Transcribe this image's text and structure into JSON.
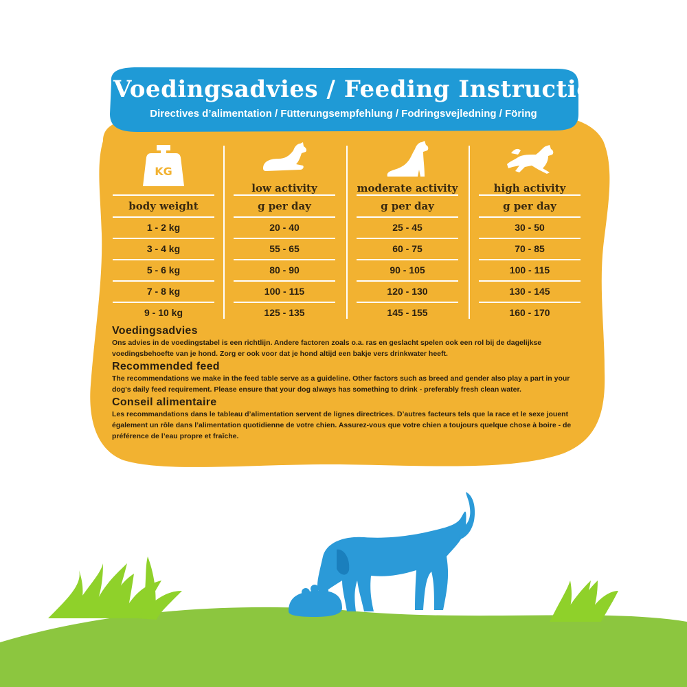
{
  "banner": {
    "title": "Voedingsadvies / Feeding Instruction",
    "subtitle": "Directives d’alimentation / Fütterungsempfehlung / Fodringsvejledning / Föring"
  },
  "colors": {
    "banner": "#1f9ad6",
    "card": "#f2b231",
    "text": "#2b2010",
    "dog": "#2b9ad8",
    "grass": "#8cc63f",
    "grass_blades": "#8fd12a"
  },
  "table": {
    "weight_icon_text": "KG",
    "columns": [
      {
        "icon": "kg-weight-icon",
        "label": "",
        "unit": "body weight",
        "values": [
          "1 - 2 kg",
          "3 - 4 kg",
          "5 - 6 kg",
          "7 - 8 kg",
          "9 - 10 kg"
        ]
      },
      {
        "icon": "lying-dog-icon",
        "label": "low activity",
        "unit": "g per day",
        "values": [
          "20 - 40",
          "55 - 65",
          "80 - 90",
          "100 - 115",
          "125 - 135"
        ]
      },
      {
        "icon": "sitting-dog-icon",
        "label": "moderate activity",
        "unit": "g per day",
        "values": [
          "25 - 45",
          "60 - 75",
          "90 - 105",
          "120 - 130",
          "145 - 155"
        ]
      },
      {
        "icon": "running-dog-icon",
        "label": "high activity",
        "unit": "g per day",
        "values": [
          "30 - 50",
          "70 - 85",
          "100 - 115",
          "130 - 145",
          "160 - 170"
        ]
      }
    ]
  },
  "notes": [
    {
      "heading": "Voedingsadvies",
      "text": "Ons advies in de voedingstabel is een richtlijn. Andere factoren zoals o.a. ras en geslacht spelen ook een rol bij de dagelijkse voedingsbehoefte van je hond. Zorg er ook voor dat je hond altijd een bakje vers drinkwater heeft."
    },
    {
      "heading": "Recommended feed",
      "text": "The recommendations we make in the feed table serve as a guideline. Other factors such as breed and gender also play a part in your dog's daily feed requirement. Please ensure that your dog always has something to drink - preferably fresh clean water."
    },
    {
      "heading": "Conseil alimentaire",
      "text": "Les recommandations dans le tableau d’alimentation servent de lignes directrices. D’autres facteurs tels que la race et le sexe jouent également un rôle dans l’alimentation quotidienne de votre chien. Assurez-vous que votre chien a toujours quelque chose à boire - de préférence de l’eau propre et fraîche."
    }
  ],
  "scene": {
    "icon": "dog-eating-from-bowl-icon"
  }
}
